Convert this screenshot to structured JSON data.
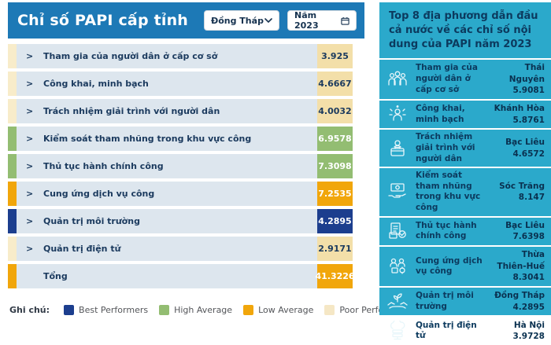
{
  "colors": {
    "header_blue": "#1d79b6",
    "panel_cyan": "#2ba9cb",
    "row_body": "#dde6ee",
    "categories": {
      "best": {
        "strip": "#1c3e8e",
        "bg": "#1c3e8e",
        "text": "#ffffff"
      },
      "high": {
        "strip": "#93bd72",
        "bg": "#93bd72",
        "text": "#ffffff"
      },
      "low": {
        "strip": "#f1a60b",
        "bg": "#f1a60b",
        "text": "#ffffff"
      },
      "poor": {
        "strip": "#f8ecca",
        "bg": "#f3dfa9",
        "text": "#1b3a5e"
      }
    }
  },
  "icons": {
    "expand_glyph": ">",
    "province_dropdown": "chevron-down-icon",
    "year_dropdown": "calendar-icon"
  },
  "left_panel": {
    "title": "Chỉ số PAPI cấp tỉnh",
    "province_dropdown": {
      "value": "Đồng Tháp"
    },
    "year_dropdown": {
      "value": "Năm 2023"
    },
    "rows": [
      {
        "label": "Tham gia của người dân ở cấp cơ sở",
        "value": "3.925",
        "category": "poor",
        "expandable": true
      },
      {
        "label": "Công khai, minh bạch",
        "value": "4.6667",
        "category": "poor",
        "expandable": true
      },
      {
        "label": "Trách nhiệm giải trình với người dân",
        "value": "4.0032",
        "category": "poor",
        "expandable": true
      },
      {
        "label": "Kiểm soát tham nhũng trong khu vực công",
        "value": "6.9578",
        "category": "high",
        "expandable": true
      },
      {
        "label": "Thủ tục hành chính công",
        "value": "7.3098",
        "category": "high",
        "expandable": true
      },
      {
        "label": "Cung ứng dịch vụ công",
        "value": "7.2535",
        "category": "low",
        "expandable": true
      },
      {
        "label": "Quản trị môi trường",
        "value": "4.2895",
        "category": "best",
        "expandable": true
      },
      {
        "label": "Quản trị điện tử",
        "value": "2.9171",
        "category": "poor",
        "expandable": true
      },
      {
        "label": "Tổng",
        "value": "41.3226",
        "category": "low",
        "expandable": false
      }
    ],
    "legend": {
      "label": "Ghi chú:",
      "items": [
        {
          "label": "Best Performers",
          "color": "#1c3e8e"
        },
        {
          "label": "High Average",
          "color": "#93bd72"
        },
        {
          "label": "Low Average",
          "color": "#f1a60b"
        },
        {
          "label": "Poor Performers",
          "color": "#f5e7c5"
        }
      ]
    }
  },
  "right_panel": {
    "title": "Top 8 địa phương dẫn đầu cả nước về các chỉ số nội dung của PAPI năm 2023",
    "items": [
      {
        "icon": "people-group-icon",
        "label": "Tham gia của người dân ở cấp cơ sở",
        "province": "Thái Nguyên",
        "value": "5.9081"
      },
      {
        "icon": "transparency-person-icon",
        "label": "Công khai, minh bạch",
        "province": "Khánh Hòa",
        "value": "5.8761"
      },
      {
        "icon": "accountability-icon",
        "label": "Trách nhiệm giải trình với người dân",
        "province": "Bạc Liêu",
        "value": "4.6572"
      },
      {
        "icon": "hand-money-icon",
        "label": "Kiểm soát tham nhũng trong khu vực công",
        "province": "Sóc Trăng",
        "value": "8.147"
      },
      {
        "icon": "documents-check-icon",
        "label": "Thủ tục hành chính công",
        "province": "Bạc Liêu",
        "value": "7.6398"
      },
      {
        "icon": "public-service-icon",
        "label": "Cung ứng dịch vụ công",
        "province": "Thừa Thiên-Huế",
        "value": "8.3041"
      },
      {
        "icon": "plant-hands-icon",
        "label": "Quản trị môi trường",
        "province": "Đồng Tháp",
        "value": "4.2895"
      },
      {
        "icon": "cloud-server-icon",
        "label": "Quản trị điện tử",
        "province": "Hà Nội",
        "value": "3.9728"
      }
    ]
  }
}
